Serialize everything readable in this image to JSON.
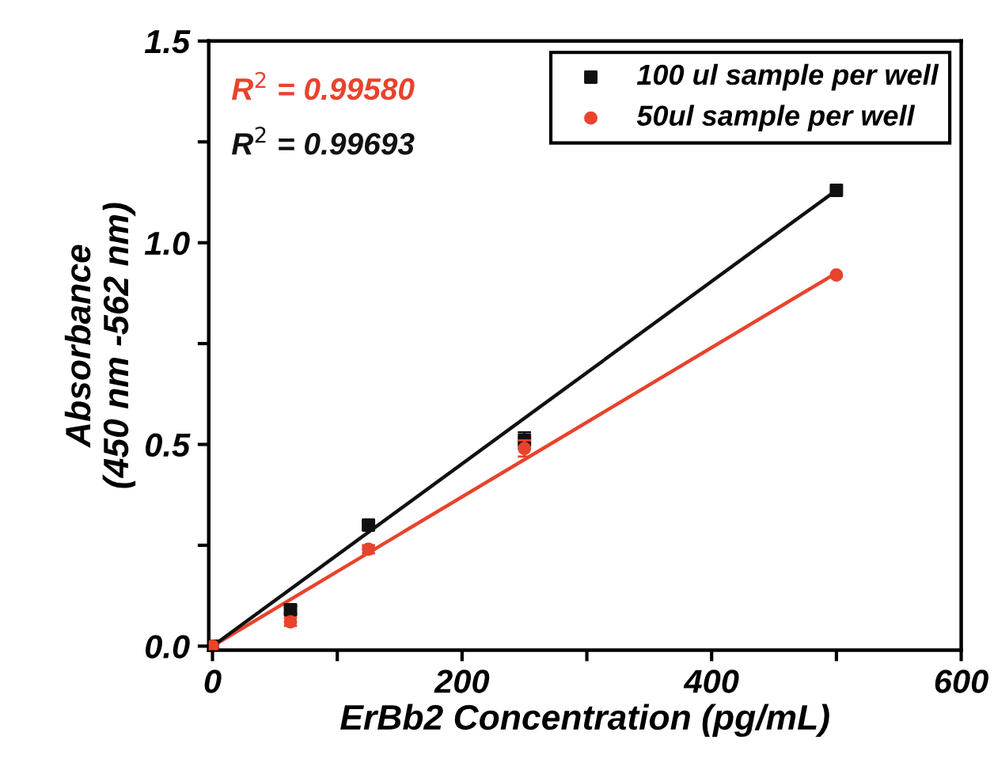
{
  "chart_data": {
    "type": "scatter",
    "xlabel": "ErBb2 Concentration (pg/mL)",
    "ylabel": "Absorbance\n(450 nm -562 nm)",
    "xlim": [
      -3,
      600
    ],
    "xticks": [
      0,
      {
        "value": 100,
        "label": null
      },
      200,
      {
        "value": 300,
        "label": null
      },
      400,
      {
        "value": 500,
        "label": null
      },
      600
    ],
    "ylim": [
      -0.01,
      1.5
    ],
    "yticks": [
      {
        "value": 0,
        "label": "0.0"
      },
      {
        "value": 0.25,
        "label": null
      },
      {
        "value": 0.5,
        "label": "0.5"
      },
      {
        "value": 0.75,
        "label": null
      },
      {
        "value": 1,
        "label": "1.0"
      },
      {
        "value": 1.25,
        "label": null
      },
      {
        "value": 1.5,
        "label": "1.5"
      }
    ],
    "grid": false,
    "legend": "top right",
    "annotations": [
      "R$^{2}$ = 0.99580",
      "R$^{2}$ = 0.99693"
    ],
    "series": [
      {
        "name": "100 ul sample per well",
        "marker": "square",
        "color": "#111111",
        "x": [
          0,
          62.5,
          125,
          250,
          500
        ],
        "values": [
          0,
          0.09,
          0.3,
          0.51,
          1.13
        ],
        "errors": [
          null,
          0.01,
          0.01,
          0.02,
          null
        ]
      },
      {
        "name": "50ul sample per well",
        "marker": "circle",
        "color": "#e8432c",
        "x": [
          0,
          62.5,
          125,
          250,
          500
        ],
        "values": [
          0,
          0.06,
          0.24,
          0.49,
          0.92
        ],
        "errors": [
          null,
          0.01,
          0.01,
          0.02,
          null
        ]
      },
      {
        "type": "line",
        "marker": "none",
        "color": "#e8432c",
        "x": [
          0,
          500
        ],
        "values": [
          0,
          0.925
        ]
      },
      {
        "type": "line",
        "marker": "none",
        "color": "#111111",
        "x": [
          0,
          500
        ],
        "values": [
          0,
          1.13
        ]
      }
    ]
  }
}
